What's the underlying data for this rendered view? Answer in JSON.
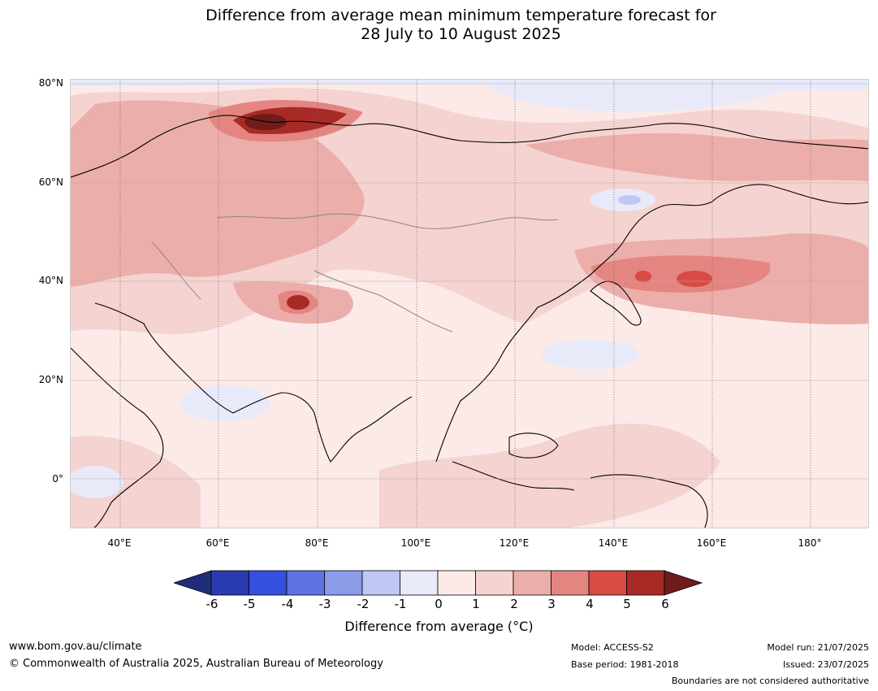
{
  "title": {
    "line1": "Difference from average mean minimum temperature forecast for",
    "line2": "28 July to 10 August 2025"
  },
  "map": {
    "lat_labels": [
      "80°N",
      "60°N",
      "40°N",
      "20°N",
      "0°"
    ],
    "lon_labels": [
      "40°E",
      "60°E",
      "80°E",
      "100°E",
      "120°E",
      "140°E",
      "160°E",
      "180°"
    ]
  },
  "colorbar": {
    "ticks": [
      "-6",
      "-5",
      "-4",
      "-3",
      "-2",
      "-1",
      "0",
      "1",
      "2",
      "3",
      "4",
      "5",
      "6"
    ],
    "colors": [
      "#1f2e78",
      "#2a3bb0",
      "#3450dd",
      "#5e74e4",
      "#8a9be8",
      "#bfc7f2",
      "#e8eafa",
      "#fceae8",
      "#f4d3d0",
      "#ecaeaa",
      "#e48581",
      "#d84a42",
      "#a82a26",
      "#6f1c1a"
    ],
    "label": "Difference from average (°C)"
  },
  "footer": {
    "url": "www.bom.gov.au/climate",
    "copyright": "© Commonwealth of Australia 2025, Australian Bureau of Meteorology",
    "model": "Model: ACCESS-S2",
    "base_period": "Base period: 1981-2018",
    "model_run": "Model run: 21/07/2025",
    "issued": "Issued: 23/07/2025",
    "disclaimer": "Boundaries are not considered authoritative"
  }
}
